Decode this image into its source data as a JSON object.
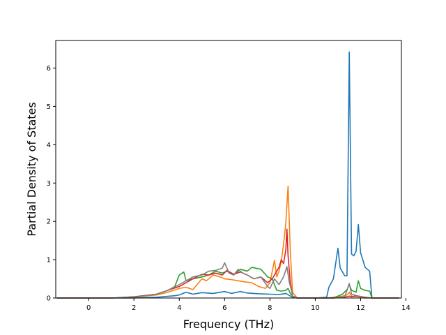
{
  "chart_data": {
    "type": "line",
    "title": "",
    "xlabel": "Frequency (THz)",
    "ylabel": "Partial Density of States",
    "xlim": [
      -1.45,
      13.8
    ],
    "ylim": [
      0,
      6.72
    ],
    "xticks": [
      0,
      2,
      4,
      6,
      8,
      10,
      12,
      14
    ],
    "yticks": [
      0,
      1,
      2,
      3,
      4,
      5,
      6
    ],
    "grid": false,
    "legend": "none",
    "series": [
      {
        "color": "#1f77b4",
        "x": [
          -1.4,
          0,
          1,
          2,
          3,
          3.8,
          4.0,
          4.3,
          4.6,
          5.0,
          5.5,
          6.0,
          6.3,
          6.7,
          7.0,
          7.5,
          8.0,
          8.4,
          8.7,
          9.0,
          9.2,
          10.0,
          10.5,
          10.6,
          10.8,
          10.9,
          11.0,
          11.1,
          11.3,
          11.4,
          11.5,
          11.6,
          11.7,
          11.8,
          11.9,
          12.0,
          12.2,
          12.4,
          12.5,
          12.7,
          13.7
        ],
        "values": [
          0,
          0,
          0,
          0,
          0.02,
          0.06,
          0.08,
          0.15,
          0.1,
          0.14,
          0.12,
          0.17,
          0.12,
          0.17,
          0.13,
          0.11,
          0.1,
          0.09,
          0.12,
          0.02,
          0,
          0,
          0.02,
          0.28,
          0.5,
          0.9,
          1.3,
          0.78,
          0.58,
          0.58,
          6.42,
          1.15,
          1.1,
          1.22,
          1.92,
          1.18,
          0.8,
          0.7,
          0,
          0,
          0
        ]
      },
      {
        "color": "#ff7f0e",
        "x": [
          -1.4,
          0,
          1,
          2,
          3,
          3.5,
          4.0,
          4.3,
          4.6,
          5.0,
          5.2,
          5.5,
          5.8,
          6.0,
          6.3,
          6.6,
          6.9,
          7.2,
          7.5,
          7.8,
          8.0,
          8.2,
          8.3,
          8.4,
          8.5,
          8.6,
          8.7,
          8.8,
          8.9,
          9.0,
          9.2,
          10.5,
          10.8,
          11.2,
          11.4,
          11.5,
          11.6,
          11.9,
          12.2,
          12.5,
          13.7
        ],
        "values": [
          0,
          0,
          0,
          0.02,
          0.08,
          0.15,
          0.25,
          0.28,
          0.22,
          0.5,
          0.45,
          0.6,
          0.55,
          0.5,
          0.48,
          0.45,
          0.42,
          0.4,
          0.3,
          0.25,
          0.4,
          0.98,
          0.55,
          0.7,
          0.95,
          1.4,
          1.95,
          2.92,
          1.2,
          0.15,
          0,
          0,
          0.02,
          0.05,
          0.08,
          0.15,
          0.05,
          0.03,
          0,
          0,
          0
        ]
      },
      {
        "color": "#2ca02c",
        "x": [
          -1.4,
          0,
          1,
          2,
          3,
          3.5,
          3.8,
          4.0,
          4.2,
          4.3,
          4.6,
          5.0,
          5.3,
          5.6,
          5.9,
          6.1,
          6.4,
          6.7,
          7.0,
          7.2,
          7.6,
          7.9,
          8.1,
          8.3,
          8.5,
          8.7,
          8.8,
          8.9,
          9.0,
          9.2,
          10.8,
          11.0,
          11.2,
          11.4,
          11.5,
          11.6,
          11.8,
          11.9,
          12.0,
          12.2,
          12.4,
          12.5,
          13.7
        ],
        "values": [
          0,
          0,
          0,
          0.03,
          0.1,
          0.2,
          0.3,
          0.6,
          0.68,
          0.45,
          0.5,
          0.55,
          0.6,
          0.7,
          0.65,
          0.7,
          0.6,
          0.75,
          0.7,
          0.8,
          0.75,
          0.55,
          0.5,
          0.2,
          0.18,
          0.2,
          0.25,
          0.12,
          0.05,
          0,
          0,
          0.05,
          0.1,
          0.22,
          0.35,
          0.2,
          0.15,
          0.45,
          0.25,
          0.2,
          0.18,
          0,
          0
        ]
      },
      {
        "color": "#d62728",
        "x": [
          -1.4,
          0,
          1,
          2,
          3,
          3.5,
          4.0,
          4.3,
          4.6,
          5.0,
          5.3,
          5.6,
          5.9,
          6.1,
          6.4,
          6.7,
          7.0,
          7.3,
          7.6,
          7.9,
          8.1,
          8.3,
          8.4,
          8.5,
          8.6,
          8.7,
          8.75,
          8.8,
          8.9,
          9.0,
          9.2,
          10.8,
          11.3,
          11.5,
          11.6,
          11.8,
          12.0,
          12.2,
          12.5,
          13.7
        ],
        "values": [
          0,
          0,
          0,
          0.03,
          0.1,
          0.2,
          0.3,
          0.4,
          0.5,
          0.62,
          0.6,
          0.65,
          0.6,
          0.72,
          0.62,
          0.68,
          0.6,
          0.5,
          0.55,
          0.4,
          0.5,
          0.7,
          0.8,
          1.0,
          0.9,
          1.25,
          1.8,
          1.1,
          0.4,
          0.05,
          0,
          0,
          0.02,
          0.05,
          0.03,
          0.06,
          0.04,
          0.02,
          0,
          0
        ]
      },
      {
        "color": "#7f7f7f",
        "x": [
          -1.4,
          0,
          1,
          2,
          3,
          3.5,
          4.0,
          4.3,
          4.6,
          5.0,
          5.3,
          5.6,
          5.9,
          6.0,
          6.2,
          6.4,
          6.6,
          6.8,
          7.0,
          7.3,
          7.6,
          7.9,
          8.0,
          8.2,
          8.4,
          8.6,
          8.75,
          8.85,
          8.95,
          9.0,
          9.2,
          10.8,
          11.3,
          11.4,
          11.5,
          11.6,
          11.9,
          12.2,
          12.5,
          13.7
        ],
        "values": [
          0,
          0,
          0,
          0.02,
          0.1,
          0.2,
          0.35,
          0.45,
          0.55,
          0.6,
          0.7,
          0.72,
          0.78,
          0.92,
          0.65,
          0.6,
          0.75,
          0.65,
          0.6,
          0.5,
          0.55,
          0.3,
          0.25,
          0.5,
          0.35,
          0.55,
          0.82,
          0.42,
          0.2,
          0.05,
          0,
          0,
          0.03,
          0.2,
          0.38,
          0.1,
          0.05,
          0.02,
          0,
          0
        ]
      }
    ]
  }
}
